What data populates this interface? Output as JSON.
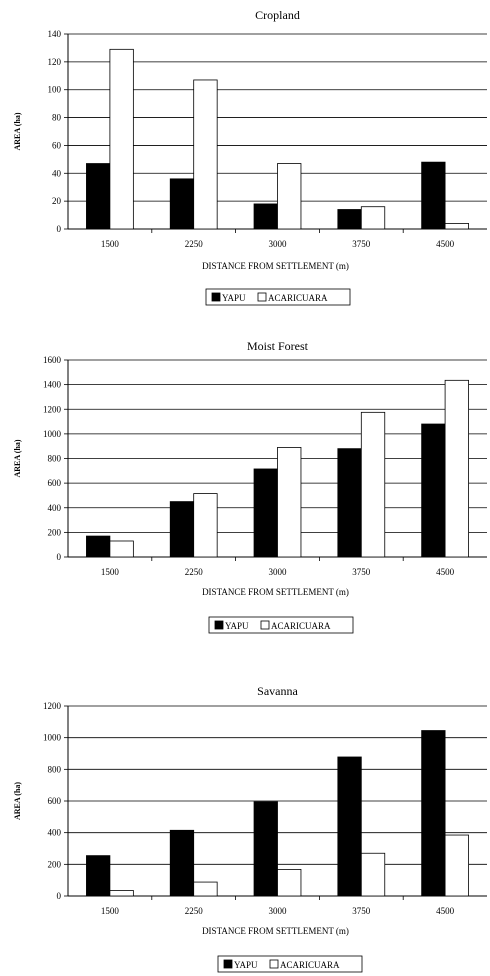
{
  "chart_data": [
    {
      "type": "bar",
      "title": "Cropland",
      "xlabel": "DISTANCE FROM SETTLEMENT (m)",
      "ylabel": "AREA (ha)",
      "categories": [
        "1500",
        "2250",
        "3000",
        "3750",
        "4500"
      ],
      "ylim": [
        0,
        140
      ],
      "yticks": [
        0,
        20,
        40,
        60,
        80,
        100,
        120,
        140
      ],
      "grid": true,
      "legend_position": "bottom",
      "series": [
        {
          "name": "YAPU",
          "color": "#000000",
          "values": [
            47,
            36,
            18,
            14,
            48
          ]
        },
        {
          "name": "ACARICUARA",
          "color": "#ffffff",
          "values": [
            129,
            107,
            47,
            16,
            4
          ]
        }
      ]
    },
    {
      "type": "bar",
      "title": "Moist Forest",
      "xlabel": "DISTANCE FROM SETTLEMENT (m)",
      "ylabel": "AREA (ha)",
      "categories": [
        "1500",
        "2250",
        "3000",
        "3750",
        "4500"
      ],
      "ylim": [
        0,
        1600
      ],
      "yticks": [
        0,
        200,
        400,
        600,
        800,
        1000,
        1200,
        1400,
        1600
      ],
      "grid": true,
      "legend_position": "bottom",
      "series": [
        {
          "name": "YAPU",
          "color": "#000000",
          "values": [
            170,
            450,
            715,
            880,
            1080
          ]
        },
        {
          "name": "ACARICUARA",
          "color": "#ffffff",
          "values": [
            130,
            515,
            890,
            1175,
            1435
          ]
        }
      ]
    },
    {
      "type": "bar",
      "title": "Savanna",
      "xlabel": "DISTANCE FROM SETTLEMENT (m)",
      "ylabel": "AREA (ha)",
      "categories": [
        "1500",
        "2250",
        "3000",
        "3750",
        "4500"
      ],
      "ylim": [
        0,
        1200
      ],
      "yticks": [
        0,
        200,
        400,
        600,
        800,
        1000,
        1200
      ],
      "grid": true,
      "legend_position": "bottom",
      "series": [
        {
          "name": "YAPU",
          "color": "#000000",
          "values": [
            255,
            415,
            595,
            878,
            1045
          ]
        },
        {
          "name": "ACARICUARA",
          "color": "#ffffff",
          "values": [
            35,
            88,
            168,
            270,
            385
          ]
        }
      ]
    }
  ]
}
